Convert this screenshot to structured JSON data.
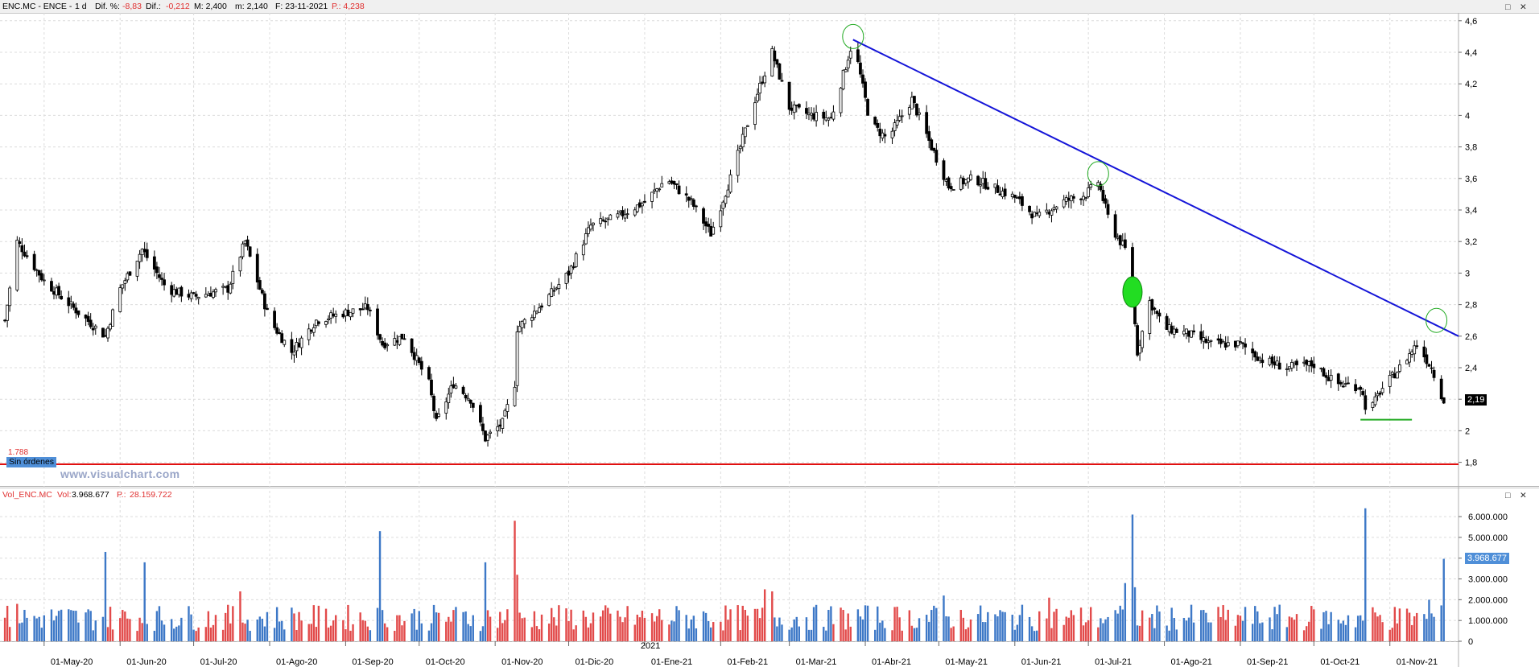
{
  "header": {
    "symbol": "ENC.MC - ENCE -",
    "period": "1 d",
    "dif_pct_label": "Dif. %:",
    "dif_pct_value": "-8,83",
    "dif_label": "Dif.:",
    "dif_value": "-0,212",
    "max_label": "M: 2,400",
    "min_label": "m: 2,140",
    "date_label": "F: 23-11-2021",
    "price_label": "P.: 4,238"
  },
  "volume_header": {
    "name": "Vol_ENC.MC",
    "vol_label": "Vol:",
    "vol_value": "3.968.677",
    "p_label": "P.:",
    "p_value": "28.159.722"
  },
  "colors": {
    "up": "#e24a4a",
    "down": "#3d78c7",
    "candle": "#000000",
    "trend": "#1515d8",
    "support": "#e01010",
    "base_line": "#22aa22",
    "marker": "#22aa22"
  },
  "annotations": {
    "level_value": "1.788",
    "level_note": "Sin órdenes",
    "watermark": "www.visualchart.com",
    "last_price_tag": "2,19",
    "last_volume_tag": "3.968.677"
  },
  "chart_data": [
    {
      "type": "candlestick",
      "title": "",
      "xlabel": "",
      "ylabel": "",
      "ylim": [
        1.65,
        4.65
      ],
      "y_ticks": [
        "1,8",
        "2",
        "2,2",
        "2,4",
        "2,6",
        "2,8",
        "3",
        "3,2",
        "3,4",
        "3,6",
        "3,8",
        "4",
        "4,2",
        "4,4",
        "4,6"
      ],
      "x_ticks": [
        "01-May-20",
        "01-Jun-20",
        "01-Jul-20",
        "01-Ago-20",
        "01-Sep-20",
        "01-Oct-20",
        "01-Nov-20",
        "01-Dic-20",
        "01-Ene-21",
        "01-Feb-21",
        "01-Mar-21",
        "01-Abr-21",
        "01-May-21",
        "01-Jun-21",
        "01-Jul-21",
        "01-Ago-21",
        "01-Sep-21",
        "01-Oct-21",
        "01-Nov-21"
      ],
      "year_marker": "2021",
      "grid": true,
      "close_path": [
        [
          "15-Apr-20",
          2.7
        ],
        [
          "20-Apr-20",
          3.2
        ],
        [
          "01-May-20",
          2.95
        ],
        [
          "15-May-20",
          2.75
        ],
        [
          "26-May-20",
          2.6
        ],
        [
          "01-Jun-20",
          2.9
        ],
        [
          "10-Jun-20",
          3.15
        ],
        [
          "20-Jun-20",
          2.9
        ],
        [
          "01-Jul-20",
          2.85
        ],
        [
          "15-Jul-20",
          2.9
        ],
        [
          "22-Jul-20",
          3.2
        ],
        [
          "01-Aug-20",
          2.7
        ],
        [
          "10-Aug-20",
          2.5
        ],
        [
          "20-Aug-20",
          2.7
        ],
        [
          "01-Sep-20",
          2.75
        ],
        [
          "10-Sep-20",
          2.78
        ],
        [
          "16-Sep-20",
          2.55
        ],
        [
          "25-Sep-20",
          2.6
        ],
        [
          "05-Oct-20",
          2.3
        ],
        [
          "08-Oct-20",
          2.05
        ],
        [
          "15-Oct-20",
          2.3
        ],
        [
          "22-Oct-20",
          2.2
        ],
        [
          "28-Oct-20",
          1.95
        ],
        [
          "04-Nov-20",
          2.05
        ],
        [
          "09-Nov-20",
          2.3
        ],
        [
          "10-Nov-20",
          2.65
        ],
        [
          "20-Nov-20",
          2.8
        ],
        [
          "01-Dec-20",
          3.0
        ],
        [
          "10-Dec-20",
          3.3
        ],
        [
          "20-Dec-20",
          3.35
        ],
        [
          "01-Jan-21",
          3.45
        ],
        [
          "10-Jan-21",
          3.6
        ],
        [
          "20-Jan-21",
          3.45
        ],
        [
          "28-Jan-21",
          3.25
        ],
        [
          "05-Feb-21",
          3.6
        ],
        [
          "15-Feb-21",
          4.1
        ],
        [
          "22-Feb-21",
          4.4
        ],
        [
          "01-Mar-21",
          4.05
        ],
        [
          "10-Mar-21",
          4.0
        ],
        [
          "18-Mar-21",
          3.98
        ],
        [
          "27-Mar-21",
          4.48
        ],
        [
          "03-Apr-21",
          3.95
        ],
        [
          "10-Apr-21",
          3.85
        ],
        [
          "20-Apr-21",
          4.1
        ],
        [
          "28-Apr-21",
          3.8
        ],
        [
          "05-May-21",
          3.55
        ],
        [
          "15-May-21",
          3.6
        ],
        [
          "01-Jun-21",
          3.48
        ],
        [
          "10-Jun-21",
          3.35
        ],
        [
          "20-Jun-21",
          3.45
        ],
        [
          "30-Jun-21",
          3.5
        ],
        [
          "05-Jul-21",
          3.58
        ],
        [
          "10-Jul-21",
          3.3
        ],
        [
          "16-Jul-21",
          3.15
        ],
        [
          "19-Jul-21",
          2.85
        ],
        [
          "21-Jul-21",
          2.5
        ],
        [
          "26-Jul-21",
          2.82
        ],
        [
          "01-Aug-21",
          2.65
        ],
        [
          "10-Aug-21",
          2.62
        ],
        [
          "20-Aug-21",
          2.55
        ],
        [
          "01-Sep-21",
          2.55
        ],
        [
          "10-Sep-21",
          2.45
        ],
        [
          "20-Sep-21",
          2.4
        ],
        [
          "01-Oct-21",
          2.42
        ],
        [
          "10-Oct-21",
          2.3
        ],
        [
          "20-Oct-21",
          2.28
        ],
        [
          "23-Oct-21",
          2.1
        ],
        [
          "28-Oct-21",
          2.25
        ],
        [
          "05-Nov-21",
          2.4
        ],
        [
          "12-Nov-21",
          2.55
        ],
        [
          "18-Nov-21",
          2.4
        ],
        [
          "23-Nov-21",
          2.19
        ]
      ],
      "trendline": [
        [
          "27-Mar-21",
          4.48
        ],
        [
          "29-Nov-21",
          2.6
        ]
      ],
      "support_level": 1.788,
      "base_line": [
        [
          "20-Oct-21",
          2.07
        ],
        [
          "10-Nov-21",
          2.07
        ]
      ],
      "marked_highs": [
        [
          "27-Mar-21",
          4.5
        ],
        [
          "05-Jul-21",
          3.63
        ],
        [
          "20-Nov-21",
          2.7
        ]
      ],
      "marked_gap": [
        "19-Jul-21",
        2.88
      ],
      "last_value": 2.19
    },
    {
      "type": "bar",
      "title": "",
      "xlabel": "",
      "ylabel": "",
      "ylim": [
        0,
        6700000
      ],
      "y_ticks": [
        "0",
        "1.000.000",
        "2.000.000",
        "3.000.000",
        "4.000.000",
        "5.000.000",
        "6.000.000"
      ],
      "base_volume": 1100000,
      "spikes": [
        [
          "20-Apr-20",
          1800000
        ],
        [
          "26-May-20",
          4300000
        ],
        [
          "11-Jun-20",
          3800000
        ],
        [
          "20-Jul-20",
          2400000
        ],
        [
          "15-Sep-20",
          5300000
        ],
        [
          "20-Sep-20",
          2700000
        ],
        [
          "28-Oct-20",
          3800000
        ],
        [
          "09-Nov-20",
          5800000
        ],
        [
          "10-Nov-20",
          3200000
        ],
        [
          "19-Feb-21",
          2500000
        ],
        [
          "22-Feb-21",
          2400000
        ],
        [
          "27-Mar-21",
          2500000
        ],
        [
          "03-May-21",
          2200000
        ],
        [
          "15-Jun-21",
          2100000
        ],
        [
          "16-Jul-21",
          2800000
        ],
        [
          "19-Jul-21",
          6100000
        ],
        [
          "20-Jul-21",
          2600000
        ],
        [
          "22-Oct-21",
          6400000
        ],
        [
          "23-Oct-21",
          3000000
        ],
        [
          "17-Nov-21",
          2000000
        ],
        [
          "23-Nov-21",
          3968677
        ]
      ],
      "last_value": 3968677
    }
  ]
}
